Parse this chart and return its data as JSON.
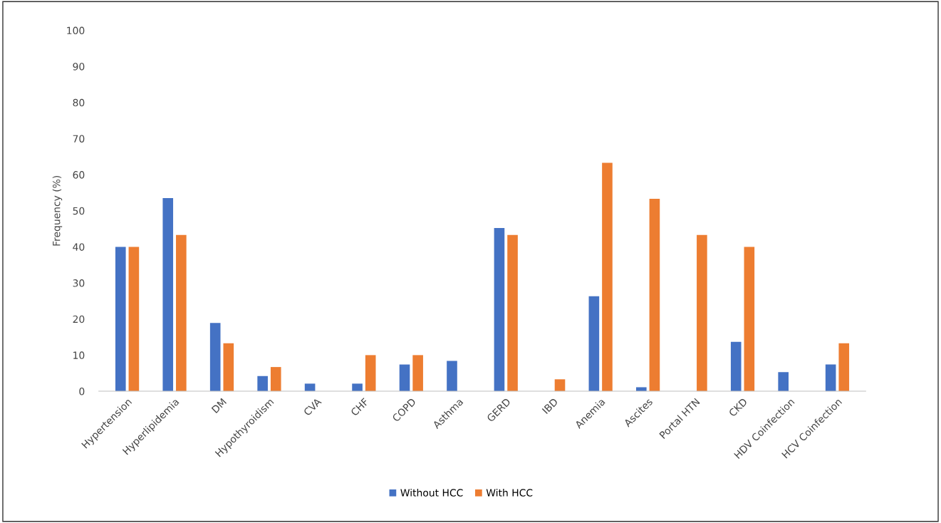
{
  "chart_data": {
    "type": "bar",
    "ylabel": "Frequency (%)",
    "categories": [
      "Hypertension",
      "Hyperlipidemia",
      "DM",
      "Hypothyroidism",
      "CVA",
      "CHF",
      "COPD",
      "Asthma",
      "GERD",
      "IBD",
      "Anemia",
      "Ascites",
      "Portal HTN",
      "CKD",
      "HDV Coinfection",
      "HCV Coinfection"
    ],
    "series": [
      {
        "name": "Without HCC",
        "color": "#4472c4",
        "values": [
          40,
          53.5,
          18.9,
          4.2,
          2.1,
          2.1,
          7.4,
          8.4,
          45.2,
          0,
          26.3,
          1.1,
          0,
          13.7,
          5.3,
          7.4
        ]
      },
      {
        "name": "With HCC",
        "color": "#ed7d31",
        "values": [
          40,
          43.3,
          13.3,
          6.7,
          0,
          10,
          10,
          0,
          43.3,
          3.3,
          63.3,
          53.3,
          43.3,
          40,
          0,
          13.3
        ]
      }
    ],
    "ylim": [
      0,
      100
    ],
    "yticks": [
      0,
      10,
      20,
      30,
      40,
      50,
      60,
      70,
      80,
      90,
      100
    ],
    "grid": false,
    "legend": "bottom"
  }
}
